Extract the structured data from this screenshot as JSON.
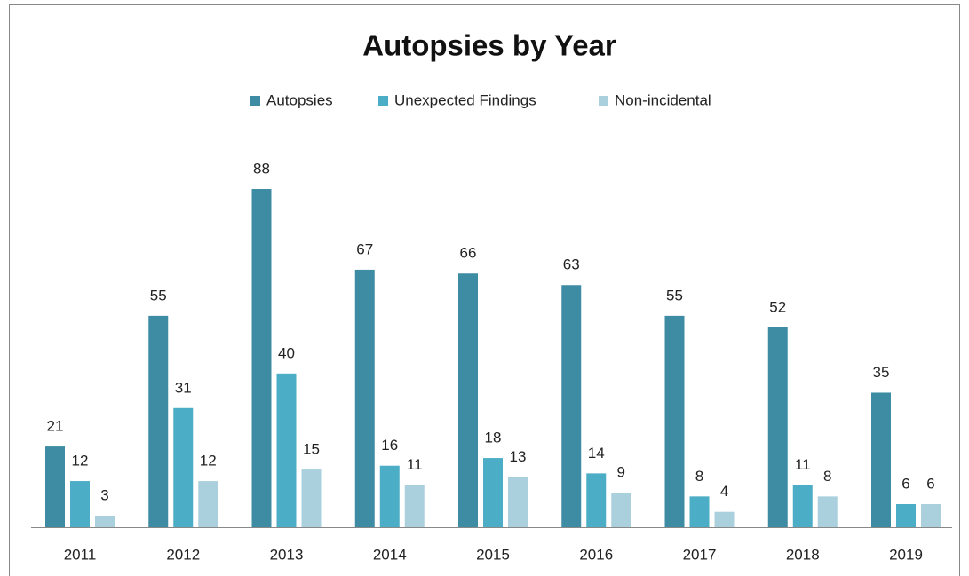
{
  "chart_data": {
    "type": "bar",
    "title": "Autopsies by Year",
    "categories": [
      "2011",
      "2012",
      "2013",
      "2014",
      "2015",
      "2016",
      "2017",
      "2018",
      "2019"
    ],
    "series": [
      {
        "name": "Autopsies",
        "color": "#3e8ca4",
        "values": [
          21,
          55,
          88,
          67,
          66,
          63,
          55,
          52,
          35
        ]
      },
      {
        "name": "Unexpected Findings",
        "color": "#4badc6",
        "values": [
          12,
          31,
          40,
          16,
          18,
          14,
          8,
          11,
          6
        ]
      },
      {
        "name": "Non-incidental",
        "color": "#aad0de",
        "values": [
          3,
          12,
          15,
          11,
          13,
          9,
          4,
          8,
          6
        ]
      }
    ],
    "legend": "top"
  }
}
